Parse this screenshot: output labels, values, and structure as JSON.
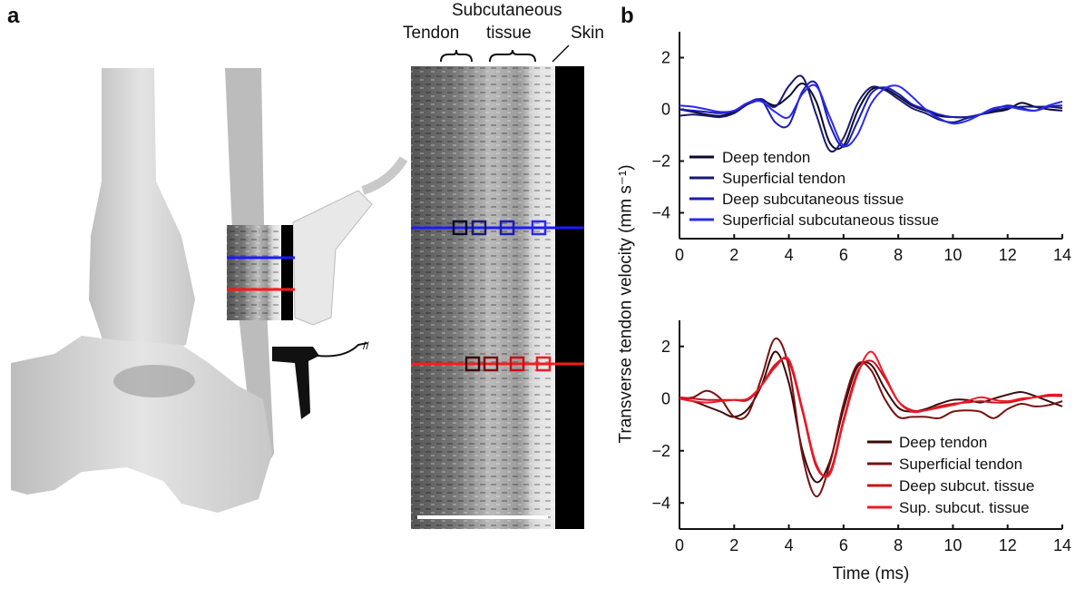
{
  "panel_a": {
    "label": "a",
    "annotations": {
      "subcutaneous_line1": "Subcutaneous",
      "subcutaneous_line2": "tissue",
      "tendon": "Tendon",
      "skin": "Skin"
    },
    "line_colors": {
      "upper": "#1a1aff",
      "lower": "#ff1a1a"
    }
  },
  "panel_b": {
    "label": "b"
  },
  "chart_data": [
    {
      "type": "line",
      "ylabel": "Transverse tendon velocity (mm s⁻¹)",
      "xlabel": "",
      "xlim": [
        0,
        14
      ],
      "ylim": [
        -5,
        3
      ],
      "xticks": [
        "0",
        "2",
        "4",
        "6",
        "8",
        "10",
        "12",
        "14"
      ],
      "yticks": [
        "2",
        "0",
        "−2",
        "−4"
      ],
      "legend_position": "bottom-left",
      "x": [
        0,
        0.5,
        1,
        1.5,
        2,
        2.5,
        3,
        3.5,
        4,
        4.5,
        5,
        5.5,
        6,
        6.5,
        7,
        7.5,
        8,
        8.5,
        9,
        9.5,
        10,
        10.5,
        11,
        11.5,
        12,
        12.5,
        13,
        13.5,
        14
      ],
      "series": [
        {
          "name": "Deep tendon",
          "color": "#0a0a30",
          "values": [
            0,
            -0.1,
            -0.2,
            -0.25,
            -0.1,
            0.2,
            0.35,
            0.15,
            0.5,
            1.0,
            0.3,
            -1.3,
            -1.4,
            -0.1,
            0.75,
            0.8,
            0.5,
            0.15,
            -0.05,
            -0.25,
            -0.3,
            -0.3,
            -0.2,
            -0.1,
            0.0,
            0.25,
            0.1,
            0.0,
            -0.05
          ]
        },
        {
          "name": "Superficial tendon",
          "color": "#1a1a6e",
          "values": [
            -0.25,
            -0.2,
            -0.25,
            -0.3,
            -0.15,
            0.2,
            0.4,
            0.1,
            0.9,
            1.25,
            -0.2,
            -1.6,
            -1.1,
            0.2,
            0.85,
            0.75,
            0.4,
            0.05,
            -0.15,
            -0.4,
            -0.5,
            -0.35,
            -0.2,
            -0.05,
            0.05,
            0.1,
            0.1,
            0.1,
            0.05
          ]
        },
        {
          "name": "Deep subcutaneous tissue",
          "color": "#1c1cb4",
          "values": [
            0.0,
            -0.05,
            -0.1,
            -0.15,
            -0.05,
            0.25,
            0.35,
            -0.5,
            -0.6,
            0.7,
            1.0,
            -0.6,
            -1.45,
            -0.5,
            0.6,
            0.85,
            0.6,
            0.2,
            0.0,
            -0.2,
            -0.3,
            -0.3,
            -0.2,
            0.0,
            0.15,
            0.05,
            -0.05,
            0.1,
            0.15
          ]
        },
        {
          "name": "Superficial subcutaneous tissue",
          "color": "#2a2af0",
          "values": [
            0.15,
            0.1,
            0.0,
            -0.1,
            -0.05,
            0.25,
            0.3,
            -0.1,
            -0.3,
            0.6,
            0.9,
            -0.3,
            -1.4,
            -1.0,
            0.2,
            0.8,
            0.9,
            0.5,
            0.0,
            -0.35,
            -0.55,
            -0.45,
            -0.2,
            0.05,
            0.1,
            0.0,
            -0.05,
            0.15,
            0.3
          ]
        }
      ]
    },
    {
      "type": "line",
      "xlabel": "Time (ms)",
      "xlim": [
        0,
        14
      ],
      "ylim": [
        -5,
        3
      ],
      "xticks": [
        "0",
        "2",
        "4",
        "6",
        "8",
        "10",
        "12",
        "14"
      ],
      "yticks": [
        "2",
        "0",
        "−2",
        "−4"
      ],
      "legend_position": "bottom-right",
      "x": [
        0,
        0.5,
        1,
        1.5,
        2,
        2.5,
        3,
        3.5,
        4,
        4.5,
        5,
        5.5,
        6,
        6.5,
        7,
        7.5,
        8,
        8.5,
        9,
        9.5,
        10,
        10.5,
        11,
        11.5,
        12,
        12.5,
        13,
        13.5,
        14
      ],
      "series": [
        {
          "name": "Deep tendon",
          "color": "#3a0a0a",
          "values": [
            0,
            -0.1,
            -0.3,
            -0.5,
            -0.7,
            -0.4,
            0.5,
            1.8,
            0.6,
            -2.0,
            -3.2,
            -2.4,
            -0.4,
            1.2,
            1.3,
            0.4,
            -0.35,
            -0.5,
            -0.4,
            -0.2,
            -0.05,
            -0.05,
            -0.15,
            0.0,
            0.15,
            0.25,
            0.1,
            -0.1,
            -0.3
          ]
        },
        {
          "name": "Superficial tendon",
          "color": "#7a1010",
          "values": [
            0.0,
            0.05,
            0.3,
            0.0,
            -0.7,
            -0.6,
            0.8,
            2.3,
            1.2,
            -2.2,
            -3.75,
            -2.5,
            -0.2,
            1.3,
            1.1,
            0.0,
            -0.7,
            -0.7,
            -0.7,
            -0.75,
            -0.5,
            -0.45,
            -0.5,
            -0.75,
            -0.4,
            -0.2,
            -0.3,
            -0.25,
            -0.1
          ]
        },
        {
          "name": "Deep subcut. tissue",
          "color": "#c8101a",
          "values": [
            0.05,
            0.0,
            -0.05,
            -0.05,
            -0.05,
            -0.05,
            0.5,
            1.3,
            1.4,
            -0.5,
            -2.6,
            -2.8,
            -0.8,
            1.0,
            1.45,
            0.8,
            -0.1,
            -0.45,
            -0.45,
            -0.3,
            -0.2,
            -0.15,
            -0.1,
            -0.15,
            -0.15,
            -0.05,
            0.05,
            0.1,
            0.1
          ]
        },
        {
          "name": "Sup. subcut. tissue",
          "color": "#f01a28",
          "values": [
            0.0,
            -0.1,
            -0.15,
            -0.1,
            -0.05,
            0.0,
            0.5,
            1.2,
            1.5,
            -0.4,
            -2.5,
            -2.9,
            -0.9,
            0.9,
            1.8,
            0.9,
            -0.1,
            -0.5,
            -0.45,
            -0.35,
            -0.25,
            -0.1,
            0.05,
            -0.05,
            -0.1,
            0.0,
            0.05,
            0.15,
            0.15
          ]
        }
      ]
    }
  ]
}
